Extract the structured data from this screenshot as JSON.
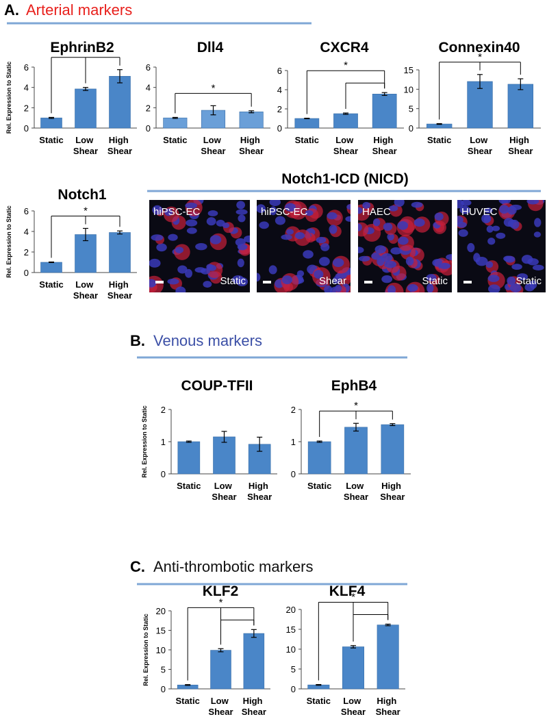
{
  "headings": {
    "section_a_letter": "A.",
    "section_a": "Arterial markers",
    "section_b_letter": "B.",
    "section_b": "Venous markers",
    "section_c_letter": "C.",
    "section_c": "Anti-thrombotic markers",
    "nicd_title": "Notch1-ICD (NICD)"
  },
  "micrographs": [
    {
      "cell": "hiPSC-EC",
      "condition": "Static"
    },
    {
      "cell": "hiPSC-EC",
      "condition": "Shear"
    },
    {
      "cell": "HAEC",
      "condition": "Static"
    },
    {
      "cell": "HUVEC",
      "condition": "Static"
    }
  ],
  "chart_data": [
    {
      "type": "bar",
      "title": "EphrinB2",
      "ylabel": "Rel. Expression to Static",
      "categories": [
        "Static",
        "Low Shear",
        "High Shear"
      ],
      "values": [
        1,
        3.85,
        5.1
      ],
      "errors": [
        0.05,
        0.15,
        0.65
      ],
      "ylim": [
        0,
        6
      ],
      "yticks": [
        0,
        2,
        4,
        6
      ],
      "color": "#4a86c8",
      "annotation": "*"
    },
    {
      "type": "bar",
      "title": "Dll4",
      "categories": [
        "Static",
        "Low Shear",
        "High Shear"
      ],
      "values": [
        1,
        1.75,
        1.6
      ],
      "errors": [
        0.05,
        0.45,
        0.1
      ],
      "ylim": [
        0,
        6
      ],
      "yticks": [
        0,
        2,
        4,
        6
      ],
      "color": "#6a9fd8",
      "annotation": "*"
    },
    {
      "type": "bar",
      "title": "CXCR4",
      "categories": [
        "Static",
        "Low Shear",
        "High Shear"
      ],
      "values": [
        1,
        1.5,
        3.55
      ],
      "errors": [
        0.03,
        0.07,
        0.15
      ],
      "ylim": [
        0,
        6
      ],
      "yticks": [
        0,
        2,
        4,
        6
      ],
      "color": "#4a86c8",
      "annotation": "*"
    },
    {
      "type": "bar",
      "title": "Connexin40",
      "categories": [
        "Static",
        "Low Shear",
        "High Shear"
      ],
      "values": [
        1.05,
        12,
        11.3
      ],
      "errors": [
        0.1,
        1.8,
        1.4
      ],
      "ylim": [
        0,
        15
      ],
      "yticks": [
        0,
        5,
        10,
        15
      ],
      "color": "#4a86c8",
      "annotation": "*"
    },
    {
      "type": "bar",
      "title": "Notch1",
      "ylabel": "Rel. Expression to Static",
      "categories": [
        "Static",
        "Low Shear",
        "High Shear"
      ],
      "values": [
        1,
        3.7,
        3.9
      ],
      "errors": [
        0.03,
        0.6,
        0.15
      ],
      "ylim": [
        0,
        6
      ],
      "yticks": [
        0,
        2,
        4,
        6
      ],
      "color": "#4a86c8",
      "annotation": "*"
    },
    {
      "type": "bar",
      "title": "COUP-TFII",
      "ylabel": "Rel. Expression to Static",
      "categories": [
        "Static",
        "Low Shear",
        "High Shear"
      ],
      "values": [
        1,
        1.15,
        0.92
      ],
      "errors": [
        0.02,
        0.17,
        0.22
      ],
      "ylim": [
        0,
        2
      ],
      "yticks": [
        0,
        1,
        2
      ],
      "color": "#4a86c8"
    },
    {
      "type": "bar",
      "title": "EphB4",
      "categories": [
        "Static",
        "Low Shear",
        "High Shear"
      ],
      "values": [
        1,
        1.45,
        1.53
      ],
      "errors": [
        0.02,
        0.12,
        0.03
      ],
      "ylim": [
        0,
        2
      ],
      "yticks": [
        0,
        1,
        2
      ],
      "color": "#4a86c8",
      "annotation": "*"
    },
    {
      "type": "bar",
      "title": "KLF2",
      "ylabel": "Rel. Expression to Static",
      "categories": [
        "Static",
        "Low Shear",
        "High Shear"
      ],
      "values": [
        1,
        9.9,
        14.2
      ],
      "errors": [
        0.1,
        0.4,
        1.0
      ],
      "ylim": [
        0,
        20
      ],
      "yticks": [
        0,
        5,
        10,
        15,
        20
      ],
      "color": "#4a86c8",
      "annotation": "*"
    },
    {
      "type": "bar",
      "title": "KLF4",
      "categories": [
        "Static",
        "Low Shear",
        "High Shear"
      ],
      "values": [
        1,
        10.6,
        16.1
      ],
      "errors": [
        0.1,
        0.3,
        0.2
      ],
      "ylim": [
        0,
        20
      ],
      "yticks": [
        0,
        5,
        10,
        15,
        20
      ],
      "color": "#4a86c8",
      "annotation": "*"
    }
  ]
}
